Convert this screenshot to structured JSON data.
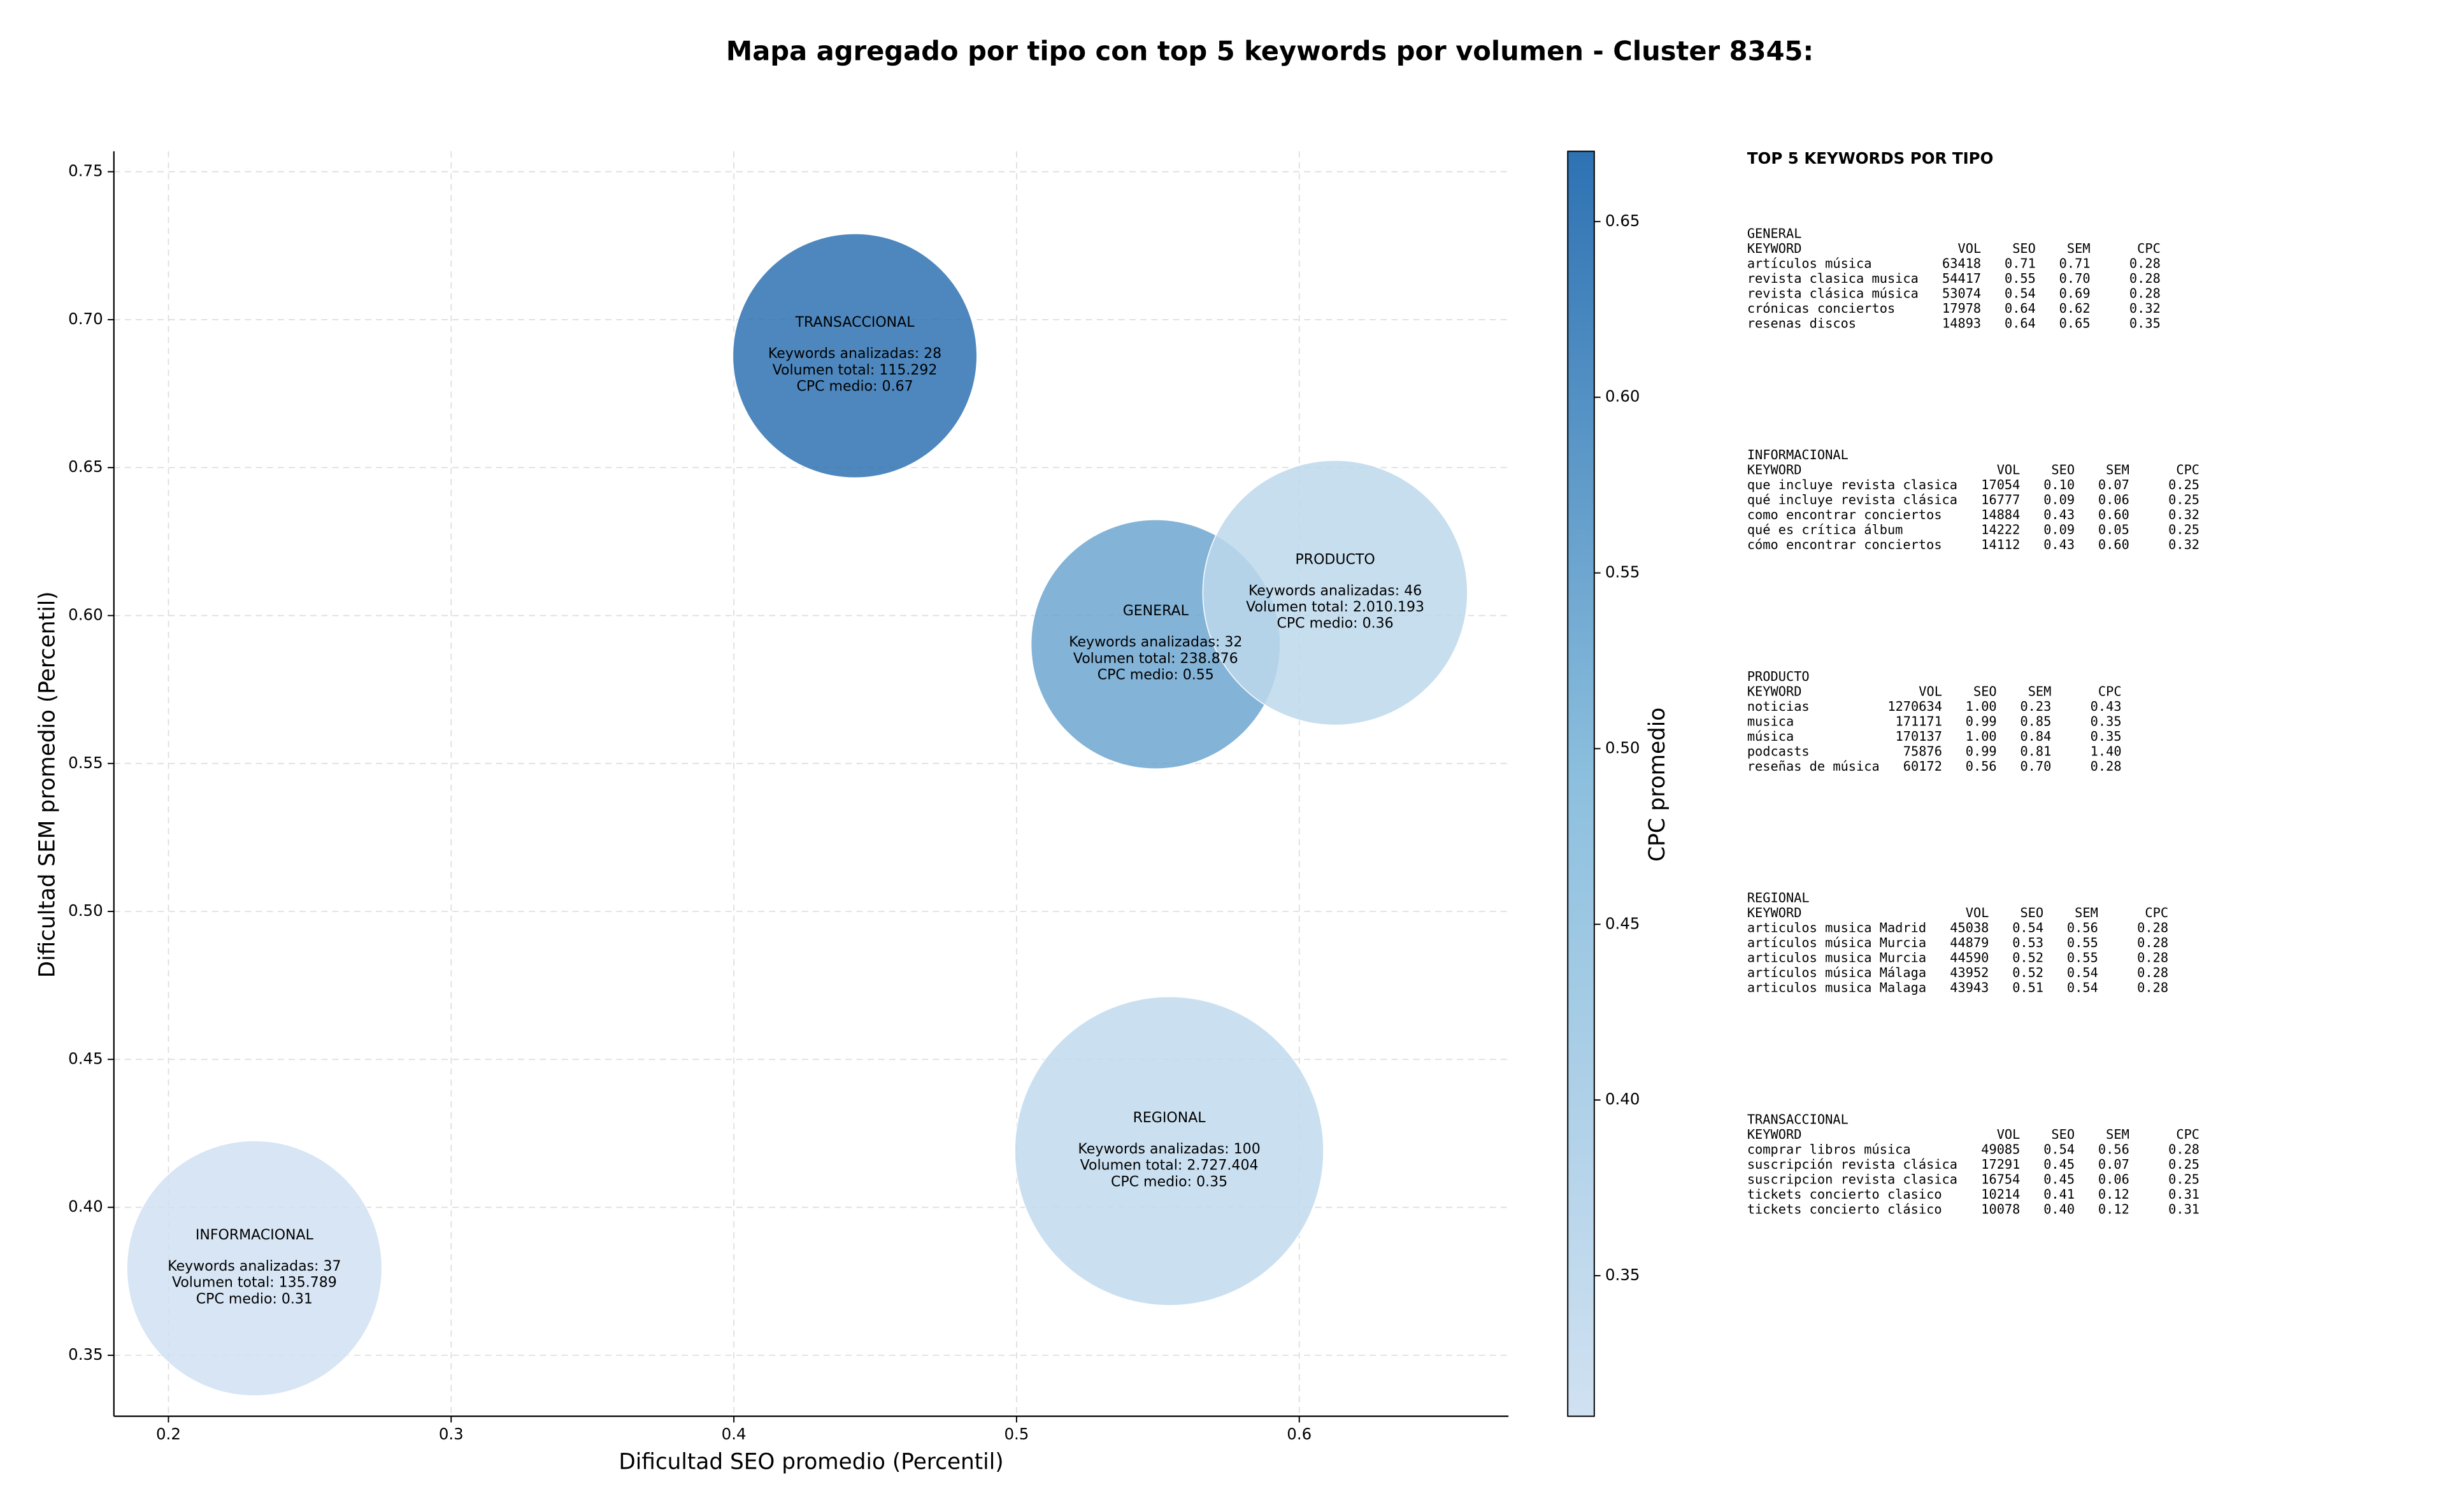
{
  "chart_data": {
    "type": "bubble",
    "title": "Mapa agregado por tipo con top 5 keywords por volumen - Cluster 8345:",
    "x_label": "Dificultad SEO promedio (Percentil)",
    "y_label": "Dificultad SEM promedio (Percentil)",
    "xlim": [
      0.1807,
      0.674
    ],
    "ylim": [
      0.3294,
      0.7569
    ],
    "xticks": [
      0.2,
      0.3,
      0.4,
      0.5,
      0.6
    ],
    "yticks": [
      0.35,
      {
        "value": 0.4,
        "label": "0.40"
      },
      0.45,
      {
        "value": 0.5,
        "label": "0.50"
      },
      0.55,
      {
        "value": 0.6,
        "label": "0.60"
      },
      0.65,
      {
        "value": 0.7,
        "label": "0.70"
      },
      0.75
    ],
    "grid": true,
    "colorbar": {
      "label": "CPC promedio",
      "clim": [
        0.31,
        0.67
      ],
      "colors": [
        "#d0e1f2",
        "#8dc0de",
        "#2e72b3"
      ],
      "ticks": [
        0.35,
        {
          "value": 0.4,
          "label": "0.40"
        },
        0.45,
        {
          "value": 0.5,
          "label": "0.50"
        },
        0.55,
        {
          "value": 0.6,
          "label": "0.60"
        },
        0.65
      ]
    },
    "points": [
      {
        "name": "TRANSACCIONAL",
        "x": 0.4428,
        "y": 0.6878,
        "size": 28,
        "cpc": 0.67,
        "labels": [
          "Keywords analizadas: 28",
          "Volumen total: 115.292",
          "CPC medio: 0.67"
        ]
      },
      {
        "name": "GENERAL",
        "x": 0.5492,
        "y": 0.5903,
        "size": 32,
        "cpc": 0.55,
        "labels": [
          "Keywords analizadas: 32",
          "Volumen total: 238.876",
          "CPC medio: 0.55"
        ]
      },
      {
        "name": "PRODUCTO",
        "x": 0.6127,
        "y": 0.6077,
        "size": 46,
        "cpc": 0.36,
        "labels": [
          "Keywords analizadas: 46",
          "Volumen total: 2.010.193",
          "CPC medio: 0.36"
        ]
      },
      {
        "name": "REGIONAL",
        "x": 0.554,
        "y": 0.419,
        "size": 100,
        "cpc": 0.35,
        "labels": [
          "Keywords analizadas: 100",
          "Volumen total: 2.727.404",
          "CPC medio: 0.35"
        ]
      },
      {
        "name": "INFORMACIONAL",
        "x": 0.2304,
        "y": 0.3794,
        "size": 37,
        "cpc": 0.31,
        "labels": [
          "Keywords analizadas: 37",
          "Volumen total: 135.789",
          "CPC medio: 0.31"
        ]
      }
    ]
  },
  "side_panel": {
    "title": "TOP 5 KEYWORDS POR TIPO",
    "groups": [
      {
        "title": "GENERAL",
        "header": [
          "KEYWORD",
          "VOL",
          "SEO",
          "SEM",
          "CPC"
        ],
        "rows": [
          [
            "artículos música",
            "63418",
            "0.71",
            "0.71",
            "0.28"
          ],
          [
            "revista clasica musica",
            "54417",
            "0.55",
            "0.70",
            "0.28"
          ],
          [
            "revista clásica música",
            "53074",
            "0.54",
            "0.69",
            "0.28"
          ],
          [
            "crónicas conciertos",
            "17978",
            "0.64",
            "0.62",
            "0.32"
          ],
          [
            "resenas discos",
            "14893",
            "0.64",
            "0.65",
            "0.35"
          ]
        ]
      },
      {
        "title": "INFORMACIONAL",
        "header": [
          "KEYWORD",
          "VOL",
          "SEO",
          "SEM",
          "CPC"
        ],
        "rows": [
          [
            "que incluye revista clasica",
            "17054",
            "0.10",
            "0.07",
            "0.25"
          ],
          [
            "qué incluye revista clásica",
            "16777",
            "0.09",
            "0.06",
            "0.25"
          ],
          [
            "como encontrar conciertos",
            "14884",
            "0.43",
            "0.60",
            "0.32"
          ],
          [
            "qué es crítica álbum",
            "14222",
            "0.09",
            "0.05",
            "0.25"
          ],
          [
            "cómo encontrar conciertos",
            "14112",
            "0.43",
            "0.60",
            "0.32"
          ]
        ]
      },
      {
        "title": "PRODUCTO",
        "header": [
          "KEYWORD",
          "VOL",
          "SEO",
          "SEM",
          "CPC"
        ],
        "rows": [
          [
            "noticias",
            "1270634",
            "1.00",
            "0.23",
            "0.43"
          ],
          [
            "musica",
            "171171",
            "0.99",
            "0.85",
            "0.35"
          ],
          [
            "música",
            "170137",
            "1.00",
            "0.84",
            "0.35"
          ],
          [
            "podcasts",
            "75876",
            "0.99",
            "0.81",
            "1.40"
          ],
          [
            "reseñas de música",
            "60172",
            "0.56",
            "0.70",
            "0.28"
          ]
        ]
      },
      {
        "title": "REGIONAL",
        "header": [
          "KEYWORD",
          "VOL",
          "SEO",
          "SEM",
          "CPC"
        ],
        "rows": [
          [
            "articulos musica Madrid",
            "45038",
            "0.54",
            "0.56",
            "0.28"
          ],
          [
            "artículos música Murcia",
            "44879",
            "0.53",
            "0.55",
            "0.28"
          ],
          [
            "articulos musica Murcia",
            "44590",
            "0.52",
            "0.55",
            "0.28"
          ],
          [
            "artículos música Málaga",
            "43952",
            "0.52",
            "0.54",
            "0.28"
          ],
          [
            "articulos musica Malaga",
            "43943",
            "0.51",
            "0.54",
            "0.28"
          ]
        ]
      },
      {
        "title": "TRANSACCIONAL",
        "header": [
          "KEYWORD",
          "VOL",
          "SEO",
          "SEM",
          "CPC"
        ],
        "rows": [
          [
            "comprar libros música",
            "49085",
            "0.54",
            "0.56",
            "0.28"
          ],
          [
            "suscripción revista clásica",
            "17291",
            "0.45",
            "0.07",
            "0.25"
          ],
          [
            "suscripcion revista clasica",
            "16754",
            "0.45",
            "0.06",
            "0.25"
          ],
          [
            "tickets concierto clasico",
            "10214",
            "0.41",
            "0.12",
            "0.31"
          ],
          [
            "tickets concierto clásico",
            "10078",
            "0.40",
            "0.12",
            "0.31"
          ]
        ]
      }
    ]
  }
}
